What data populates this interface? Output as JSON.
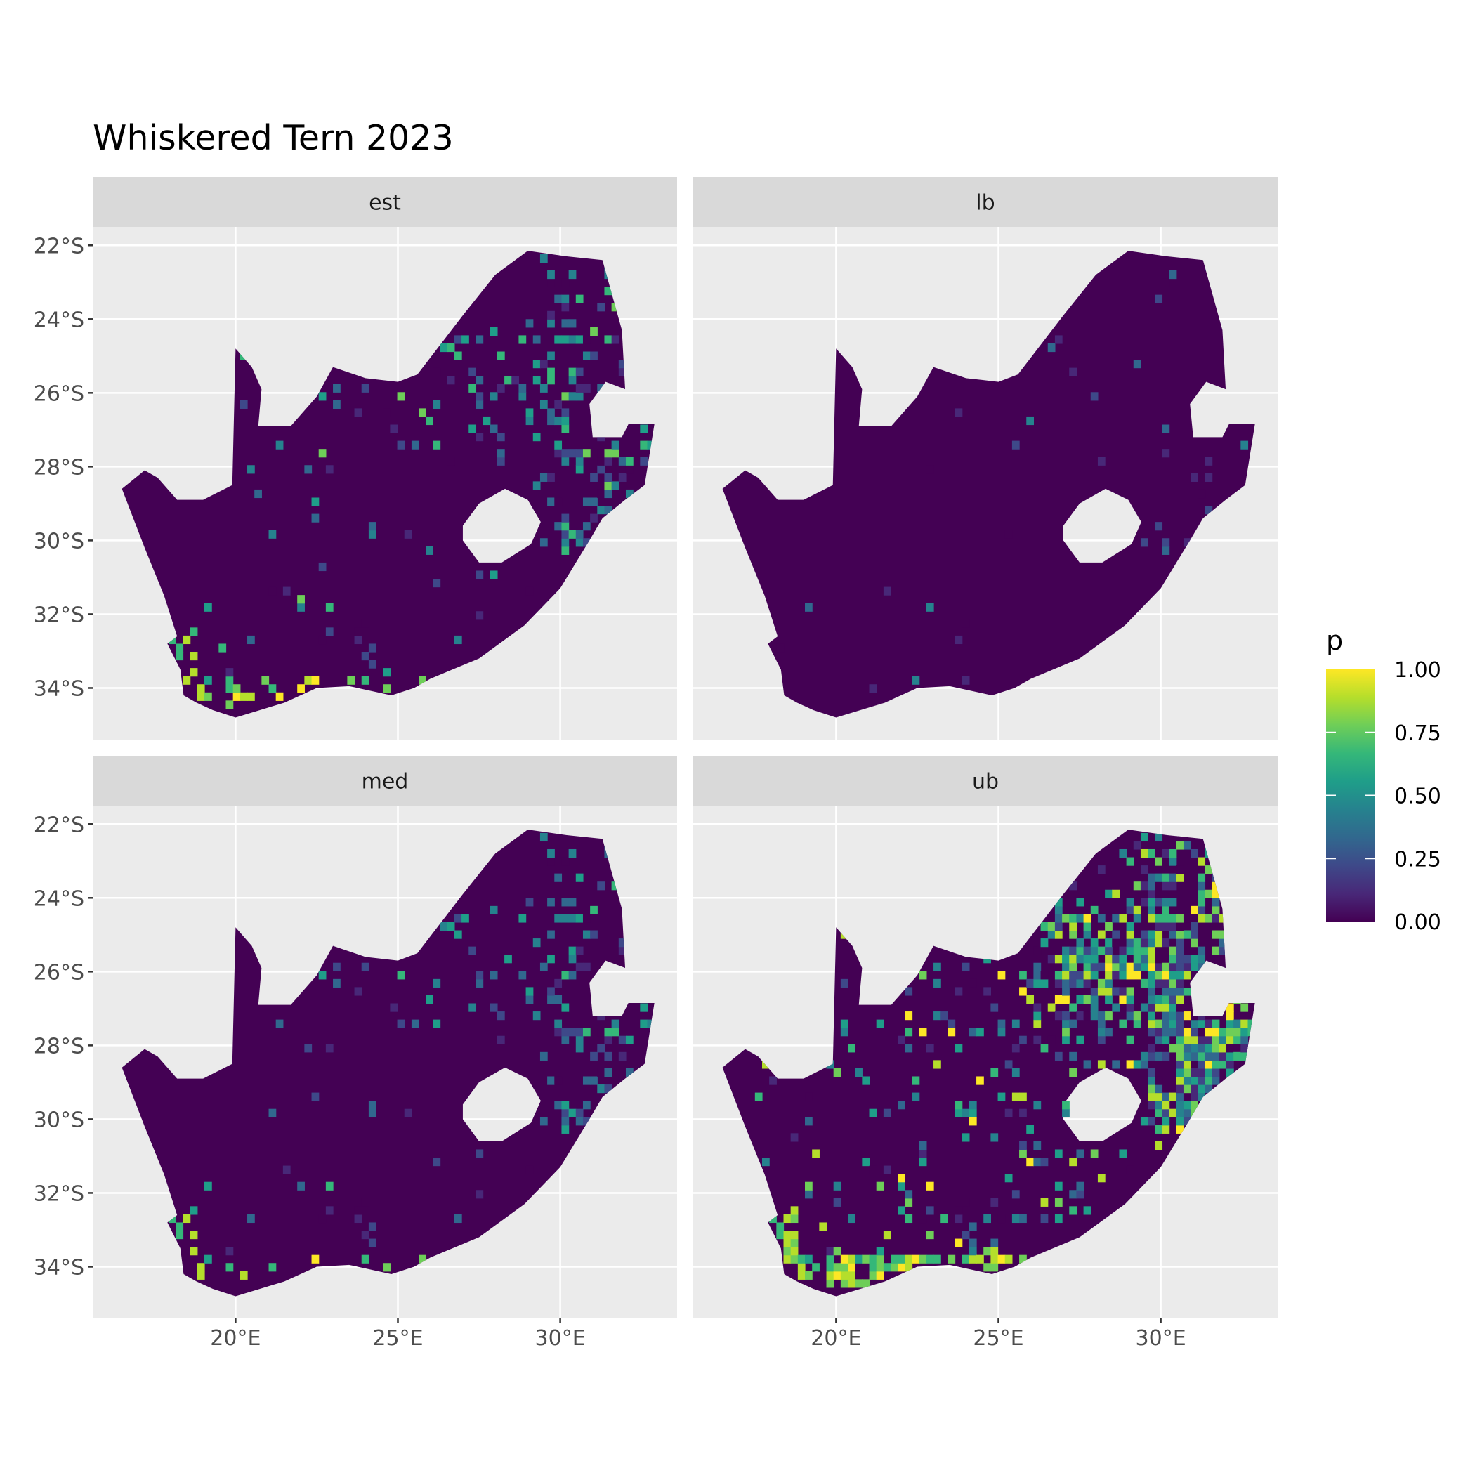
{
  "title": "Whiskered Tern 2023",
  "colors": {
    "panel_background": "#ebebeb",
    "strip_background": "#d9d9d9",
    "grid": "#ffffff",
    "land_base": "#440154",
    "viridis": [
      "#440154",
      "#482878",
      "#3e4989",
      "#31688e",
      "#26828e",
      "#1f9e89",
      "#35b779",
      "#6ece58",
      "#b5de2b",
      "#fde725"
    ]
  },
  "chart_data": {
    "type": "heatmap",
    "facets": [
      "est",
      "lb",
      "med",
      "ub"
    ],
    "x_ticks": [
      "20°E",
      "25°E",
      "30°E"
    ],
    "x_tick_values": [
      20,
      25,
      30
    ],
    "y_ticks": [
      "22°S",
      "24°S",
      "26°S",
      "28°S",
      "30°S",
      "32°S",
      "34°S"
    ],
    "y_tick_values": [
      -22,
      -24,
      -26,
      -28,
      -30,
      -32,
      -34
    ],
    "xlim": [
      15.6,
      33.6
    ],
    "ylim": [
      -35.4,
      -21.5
    ],
    "fill": {
      "name": "p",
      "limits": [
        0,
        1
      ],
      "palette": "viridis",
      "breaks": [
        "0.00",
        "0.25",
        "0.50",
        "0.75",
        "1.00"
      ],
      "break_values": [
        0,
        0.25,
        0.5,
        0.75,
        1
      ]
    },
    "legend_position": "right"
  }
}
